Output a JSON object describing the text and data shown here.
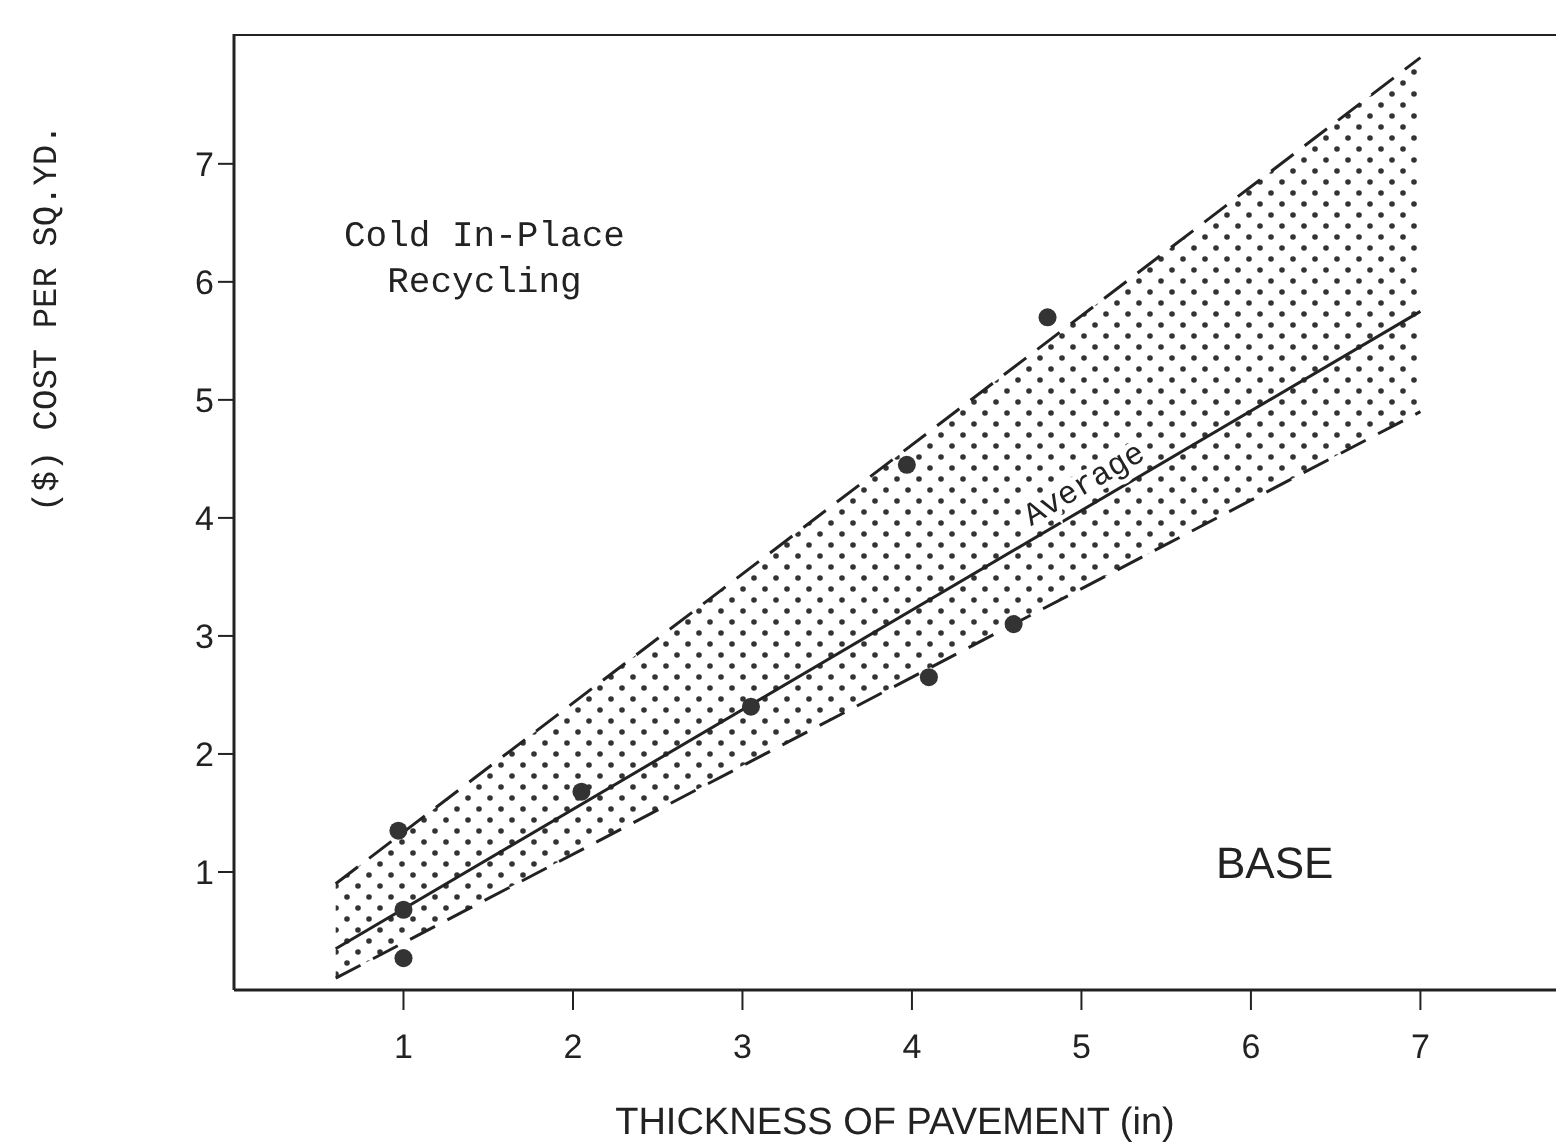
{
  "chart_data": {
    "type": "line",
    "xlabel": "THICKNESS OF PAVEMENT (in)",
    "ylabel": "($) COST PER SQ.YD.",
    "xlim": [
      0,
      7.8
    ],
    "ylim": [
      0,
      8.1
    ],
    "xticks": [
      1,
      2,
      3,
      4,
      5,
      6,
      7
    ],
    "yticks": [
      1,
      2,
      3,
      4,
      5,
      6,
      7
    ],
    "grid": false,
    "legend": false,
    "marker": "circle",
    "annotations": [
      "Cold In-Place\nRecycling",
      "BASE"
    ],
    "series": [
      {
        "type": "scatter",
        "color": "#333333",
        "x": [
          0.97,
          1,
          1,
          2.05,
          3.05,
          3.97,
          4.1,
          4.6,
          4.8
        ],
        "values": [
          1.35,
          0.68,
          0.27,
          1.68,
          2.4,
          4.45,
          2.65,
          3.1,
          5.7
        ]
      },
      {
        "name": "Average",
        "color": "#222222",
        "line_style": "solid",
        "marker": "none",
        "x": [
          0.6,
          7
        ],
        "values": [
          0.35,
          5.75
        ],
        "lower": [
          0.1,
          4.9
        ],
        "upper": [
          0.9,
          7.9
        ]
      },
      {
        "color": "#222222",
        "line_style": "dashed",
        "marker": "none",
        "x": [
          0.6,
          7
        ],
        "values": [
          0.9,
          7.9
        ]
      },
      {
        "color": "#222222",
        "line_style": "dashed",
        "marker": "none",
        "x": [
          0.6,
          7
        ],
        "values": [
          0.1,
          4.9
        ]
      }
    ]
  }
}
